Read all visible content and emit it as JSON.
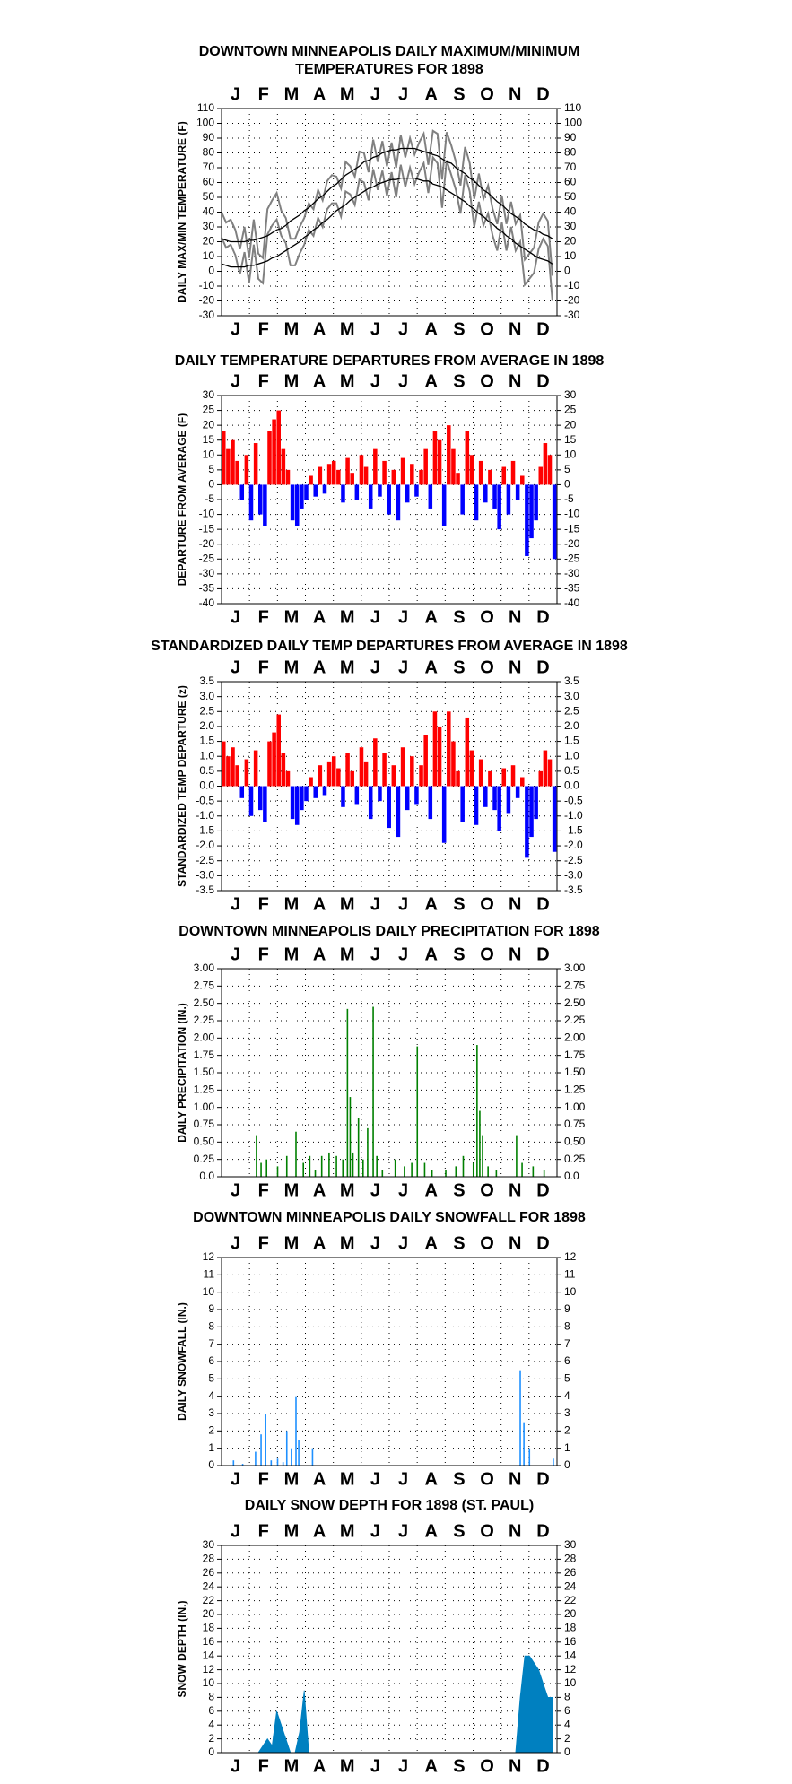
{
  "chart_data": [
    {
      "type": "line",
      "title": [
        "DOWNTOWN MINNEAPOLIS DAILY MAXIMUM/MINIMUM",
        "TEMPERATURES FOR 1898"
      ],
      "ylabel": "DAILY MAX/MIN TEMPERATURE (F)",
      "categories": [
        "J",
        "F",
        "M",
        "A",
        "M",
        "J",
        "J",
        "A",
        "S",
        "O",
        "N",
        "D"
      ],
      "xlim": [
        1,
        366
      ],
      "ylim": [
        -30,
        110
      ],
      "yticks": [
        -30,
        -20,
        -10,
        0,
        10,
        20,
        30,
        40,
        50,
        60,
        70,
        80,
        90,
        100,
        110
      ],
      "grid": true,
      "x": [
        1,
        6,
        11,
        16,
        21,
        26,
        31,
        36,
        41,
        46,
        51,
        56,
        61,
        66,
        71,
        76,
        81,
        86,
        91,
        96,
        101,
        106,
        111,
        116,
        121,
        126,
        131,
        136,
        141,
        146,
        151,
        156,
        161,
        166,
        171,
        176,
        181,
        186,
        191,
        196,
        201,
        206,
        211,
        216,
        221,
        226,
        231,
        236,
        241,
        246,
        251,
        256,
        261,
        266,
        271,
        276,
        281,
        286,
        291,
        296,
        301,
        306,
        311,
        316,
        321,
        326,
        331,
        336,
        341,
        346,
        351,
        356,
        361
      ],
      "series": [
        {
          "color": "#808080",
          "values": [
            40,
            33,
            35,
            28,
            15,
            30,
            9,
            35,
            12,
            9,
            42,
            48,
            53,
            41,
            36,
            22,
            22,
            30,
            36,
            46,
            42,
            55,
            48,
            61,
            65,
            64,
            56,
            74,
            71,
            64,
            81,
            80,
            67,
            89,
            74,
            88,
            71,
            87,
            70,
            92,
            77,
            90,
            79,
            87,
            93,
            72,
            95,
            93,
            62,
            94,
            85,
            74,
            58,
            84,
            73,
            49,
            66,
            49,
            58,
            42,
            32,
            51,
            32,
            47,
            32,
            38,
            8,
            12,
            16,
            33,
            39,
            34,
            -3
          ]
        },
        {
          "color": "#808080",
          "values": [
            23,
            16,
            18,
            11,
            -2,
            13,
            -8,
            18,
            -5,
            -8,
            25,
            31,
            35,
            24,
            19,
            4,
            4,
            12,
            18,
            28,
            24,
            36,
            30,
            42,
            46,
            46,
            37,
            54,
            52,
            45,
            62,
            60,
            48,
            69,
            55,
            68,
            51,
            67,
            50,
            72,
            57,
            70,
            59,
            67,
            73,
            53,
            77,
            73,
            43,
            75,
            65,
            55,
            39,
            65,
            54,
            30,
            47,
            31,
            39,
            24,
            14,
            33,
            14,
            30,
            14,
            20,
            -9,
            -5,
            -1,
            15,
            22,
            17,
            -20
          ]
        },
        {
          "color": "#000000",
          "values": [
            22,
            21,
            20,
            20,
            20,
            20,
            21,
            21,
            22,
            23,
            24,
            26,
            28,
            29,
            31,
            34,
            36,
            38,
            41,
            43,
            46,
            49,
            51,
            54,
            57,
            59,
            62,
            65,
            67,
            69,
            71,
            74,
            75,
            77,
            78,
            80,
            81,
            82,
            82,
            83,
            83,
            83,
            83,
            82,
            81,
            80,
            79,
            78,
            76,
            74,
            73,
            70,
            68,
            66,
            63,
            61,
            58,
            55,
            53,
            50,
            47,
            45,
            42,
            39,
            37,
            35,
            32,
            30,
            28,
            27,
            25,
            24,
            22
          ]
        },
        {
          "color": "#000000",
          "values": [
            5,
            4,
            3,
            3,
            3,
            3,
            4,
            4,
            5,
            6,
            7,
            9,
            10,
            12,
            14,
            16,
            18,
            20,
            23,
            25,
            28,
            30,
            33,
            35,
            38,
            41,
            43,
            45,
            48,
            50,
            52,
            54,
            56,
            57,
            59,
            60,
            61,
            62,
            62,
            63,
            63,
            63,
            63,
            62,
            61,
            61,
            59,
            58,
            57,
            55,
            53,
            51,
            49,
            47,
            44,
            42,
            39,
            37,
            34,
            32,
            29,
            27,
            24,
            22,
            19,
            17,
            15,
            13,
            11,
            9,
            8,
            7,
            5
          ]
        }
      ]
    },
    {
      "type": "bar",
      "title": "DAILY TEMPERATURE DEPARTURES FROM AVERAGE IN 1898",
      "ylabel": "DEPARTURE FROM AVERAGE (F)",
      "categories": [
        "J",
        "F",
        "M",
        "A",
        "M",
        "J",
        "J",
        "A",
        "S",
        "O",
        "N",
        "D"
      ],
      "xlim": [
        1,
        366
      ],
      "ylim": [
        -40,
        30
      ],
      "yticks": [
        -40,
        -35,
        -30,
        -25,
        -20,
        -15,
        -10,
        -5,
        0,
        5,
        10,
        15,
        20,
        25,
        30
      ],
      "grid": true,
      "color_positive": "#ff0000",
      "color_negative": "#0000ff",
      "x": [
        1,
        6,
        11,
        16,
        21,
        26,
        31,
        36,
        41,
        46,
        51,
        56,
        61,
        66,
        71,
        76,
        81,
        86,
        91,
        96,
        101,
        106,
        111,
        116,
        121,
        126,
        131,
        136,
        141,
        146,
        151,
        156,
        161,
        166,
        171,
        176,
        181,
        186,
        191,
        196,
        201,
        206,
        211,
        216,
        221,
        226,
        231,
        236,
        241,
        246,
        251,
        256,
        261,
        266,
        271,
        276,
        281,
        286,
        291,
        296,
        301,
        306,
        311,
        316,
        321,
        326,
        331,
        336,
        341,
        346,
        351,
        356,
        361
      ],
      "values": [
        18,
        12,
        15,
        8,
        -5,
        10,
        -12,
        14,
        -10,
        -14,
        18,
        22,
        25,
        12,
        5,
        -12,
        -14,
        -8,
        -5,
        3,
        -4,
        6,
        -3,
        7,
        8,
        5,
        -6,
        9,
        4,
        -5,
        10,
        6,
        -8,
        12,
        -4,
        8,
        -10,
        5,
        -12,
        9,
        -6,
        7,
        -4,
        5,
        12,
        -8,
        18,
        15,
        -14,
        20,
        12,
        4,
        -10,
        18,
        10,
        -12,
        8,
        -6,
        5,
        -8,
        -15,
        6,
        -10,
        8,
        -5,
        3,
        -24,
        -18,
        -12,
        6,
        14,
        10,
        -25
      ]
    },
    {
      "type": "bar",
      "title": "STANDARDIZED DAILY TEMP DEPARTURES FROM AVERAGE IN 1898",
      "ylabel": "STANDARDIZED TEMP DEPARTURE (z)",
      "categories": [
        "J",
        "F",
        "M",
        "A",
        "M",
        "J",
        "J",
        "A",
        "S",
        "O",
        "N",
        "D"
      ],
      "xlim": [
        1,
        366
      ],
      "ylim": [
        -3.5,
        3.5
      ],
      "yticks": [
        -3.5,
        {
          "value": -3,
          "label": "-3.0"
        },
        -2.5,
        {
          "value": -2,
          "label": "-2.0"
        },
        -1.5,
        {
          "value": -1,
          "label": "-1.0"
        },
        -0.5,
        {
          "value": 0,
          "label": "0.0"
        },
        0.5,
        {
          "value": 1,
          "label": "1.0"
        },
        1.5,
        {
          "value": 2,
          "label": "2.0"
        },
        2.5,
        {
          "value": 3,
          "label": "3.0"
        },
        3.5
      ],
      "grid": true,
      "color_positive": "#ff0000",
      "color_negative": "#0000ff",
      "x": [
        1,
        6,
        11,
        16,
        21,
        26,
        31,
        36,
        41,
        46,
        51,
        56,
        61,
        66,
        71,
        76,
        81,
        86,
        91,
        96,
        101,
        106,
        111,
        116,
        121,
        126,
        131,
        136,
        141,
        146,
        151,
        156,
        161,
        166,
        171,
        176,
        181,
        186,
        191,
        196,
        201,
        206,
        211,
        216,
        221,
        226,
        231,
        236,
        241,
        246,
        251,
        256,
        261,
        266,
        271,
        276,
        281,
        286,
        291,
        296,
        301,
        306,
        311,
        316,
        321,
        326,
        331,
        336,
        341,
        346,
        351,
        356,
        361
      ],
      "values": [
        1.5,
        1.0,
        1.3,
        0.7,
        -0.4,
        0.9,
        -1.0,
        1.2,
        -0.8,
        -1.2,
        1.5,
        1.8,
        2.4,
        1.1,
        0.5,
        -1.1,
        -1.3,
        -0.8,
        -0.5,
        0.3,
        -0.4,
        0.7,
        -0.3,
        0.8,
        1.0,
        0.6,
        -0.7,
        1.1,
        0.5,
        -0.6,
        1.3,
        0.8,
        -1.1,
        1.6,
        -0.5,
        1.1,
        -1.4,
        0.7,
        -1.7,
        1.3,
        -0.8,
        1.0,
        -0.6,
        0.7,
        1.7,
        -1.1,
        2.5,
        2.0,
        -1.9,
        2.5,
        1.5,
        0.5,
        -1.2,
        2.3,
        1.2,
        -1.3,
        0.9,
        -0.7,
        0.5,
        -0.8,
        -1.5,
        0.6,
        -0.9,
        0.7,
        -0.4,
        0.3,
        -2.4,
        -1.7,
        -1.1,
        0.5,
        1.2,
        0.9,
        -2.2
      ]
    },
    {
      "type": "spike",
      "title": "DOWNTOWN MINNEAPOLIS DAILY PRECIPITATION FOR 1898",
      "ylabel": "DAILY PRECIPITATION (IN.)",
      "categories": [
        "J",
        "F",
        "M",
        "A",
        "M",
        "J",
        "J",
        "A",
        "S",
        "O",
        "N",
        "D"
      ],
      "xlim": [
        1,
        366
      ],
      "ylim": [
        0,
        3
      ],
      "yticks": [
        {
          "value": 0,
          "label": "0.0"
        },
        0.25,
        {
          "value": 0.5,
          "label": "0.50"
        },
        0.75,
        {
          "value": 1,
          "label": "1.00"
        },
        1.25,
        {
          "value": 1.5,
          "label": "1.50"
        },
        1.75,
        {
          "value": 2,
          "label": "2.00"
        },
        2.25,
        {
          "value": 2.5,
          "label": "2.50"
        },
        2.75,
        {
          "value": 3,
          "label": "3.00"
        }
      ],
      "grid": true,
      "color": "#008000",
      "x": [
        39,
        44,
        50,
        62,
        72,
        82,
        90,
        97,
        103,
        110,
        118,
        126,
        133,
        138,
        141,
        144,
        150,
        155,
        160,
        166,
        170,
        176,
        190,
        200,
        208,
        214,
        222,
        230,
        245,
        256,
        264,
        275,
        279,
        282,
        285,
        291,
        300,
        322,
        328,
        340,
        352
      ],
      "values": [
        0.6,
        0.2,
        0.25,
        0.15,
        0.3,
        0.65,
        0.2,
        0.3,
        0.1,
        0.3,
        0.35,
        0.3,
        0.25,
        2.42,
        1.15,
        0.35,
        0.85,
        0.25,
        0.7,
        2.45,
        0.3,
        0.1,
        0.25,
        0.15,
        0.2,
        1.88,
        0.2,
        0.1,
        0.1,
        0.15,
        0.3,
        0.2,
        1.9,
        0.95,
        0.6,
        0.15,
        0.1,
        0.6,
        0.2,
        0.15,
        0.1
      ]
    },
    {
      "type": "spike",
      "title": "DOWNTOWN MINNEAPOLIS DAILY SNOWFALL FOR 1898",
      "ylabel": "DAILY SNOWFALL (IN.)",
      "categories": [
        "J",
        "F",
        "M",
        "A",
        "M",
        "J",
        "J",
        "A",
        "S",
        "O",
        "N",
        "D"
      ],
      "xlim": [
        1,
        366
      ],
      "ylim": [
        0,
        12
      ],
      "yticks": [
        0,
        1,
        2,
        3,
        4,
        5,
        6,
        7,
        8,
        9,
        10,
        11,
        12
      ],
      "grid": true,
      "color": "#1e90ff",
      "x": [
        14,
        24,
        38,
        44,
        49,
        55,
        62,
        68,
        72,
        77,
        82,
        85,
        100,
        326,
        330,
        336,
        362
      ],
      "values": [
        0.3,
        0.1,
        0.8,
        1.8,
        3.0,
        0.3,
        0.4,
        0.2,
        2.0,
        1.0,
        4.0,
        1.5,
        1.0,
        5.5,
        2.5,
        1.0,
        0.4
      ]
    },
    {
      "type": "area",
      "title": "DAILY SNOW DEPTH FOR 1898 (ST. PAUL)",
      "ylabel": "SNOW DEPTH (IN.)",
      "categories": [
        "J",
        "F",
        "M",
        "A",
        "M",
        "J",
        "J",
        "A",
        "S",
        "O",
        "N",
        "D"
      ],
      "xlim": [
        1,
        366
      ],
      "ylim": [
        0,
        30
      ],
      "yticks": [
        0,
        2,
        4,
        6,
        8,
        10,
        12,
        14,
        16,
        18,
        20,
        22,
        24,
        26,
        28,
        30
      ],
      "grid": true,
      "color": "#0080c0",
      "x": [
        1,
        6,
        11,
        16,
        21,
        26,
        31,
        36,
        41,
        46,
        51,
        56,
        61,
        66,
        71,
        76,
        81,
        86,
        91,
        96,
        101,
        106,
        111,
        116,
        121,
        126,
        131,
        136,
        141,
        146,
        151,
        156,
        161,
        166,
        171,
        176,
        181,
        186,
        191,
        196,
        201,
        206,
        211,
        216,
        221,
        226,
        231,
        236,
        241,
        246,
        251,
        256,
        261,
        266,
        271,
        276,
        281,
        286,
        291,
        296,
        301,
        306,
        311,
        316,
        321,
        326,
        331,
        336,
        341,
        346,
        351,
        356,
        361
      ],
      "values": [
        0,
        0,
        0,
        0,
        0,
        0,
        0,
        0,
        0,
        1,
        2,
        1,
        6,
        4,
        2,
        0,
        0,
        3,
        9,
        0,
        0,
        0,
        0,
        0,
        0,
        0,
        0,
        0,
        0,
        0,
        0,
        0,
        0,
        0,
        0,
        0,
        0,
        0,
        0,
        0,
        0,
        0,
        0,
        0,
        0,
        0,
        0,
        0,
        0,
        0,
        0,
        0,
        0,
        0,
        0,
        0,
        0,
        0,
        0,
        0,
        0,
        0,
        0,
        0,
        0,
        8,
        14,
        14,
        13,
        12,
        10,
        8,
        8
      ]
    }
  ]
}
